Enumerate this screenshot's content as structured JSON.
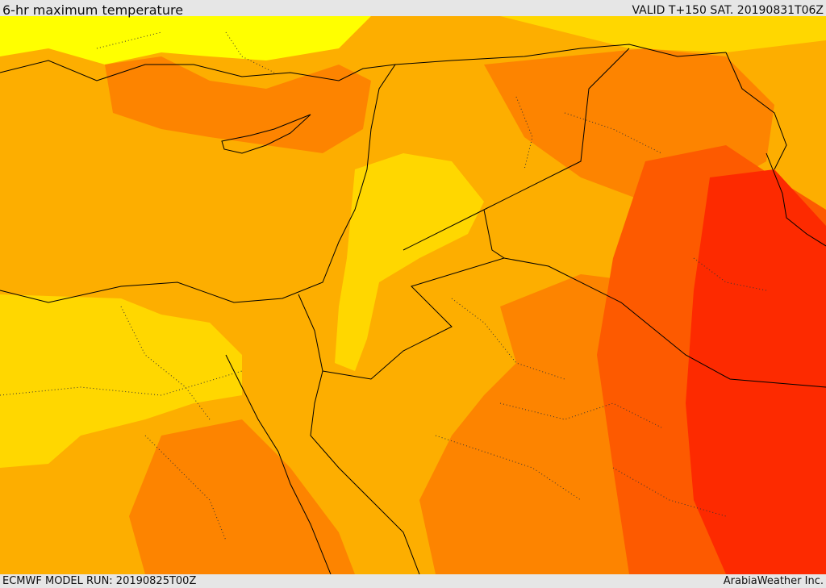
{
  "header": {
    "title": "6-hr maximum temperature",
    "valid": "VALID T+150 SAT. 20190831T06Z"
  },
  "footer": {
    "model_run": "ECMWF MODEL RUN: 20190825T00Z",
    "credit": "ArabiaWeather Inc."
  },
  "map": {
    "variable": "6-hr maximum temperature",
    "palette": [
      "#ffff00",
      "#ffd700",
      "#fdae00",
      "#fd8400",
      "#fd5a00",
      "#fd2a00"
    ],
    "coastline_color": "#000000",
    "border_style": "dotted"
  }
}
